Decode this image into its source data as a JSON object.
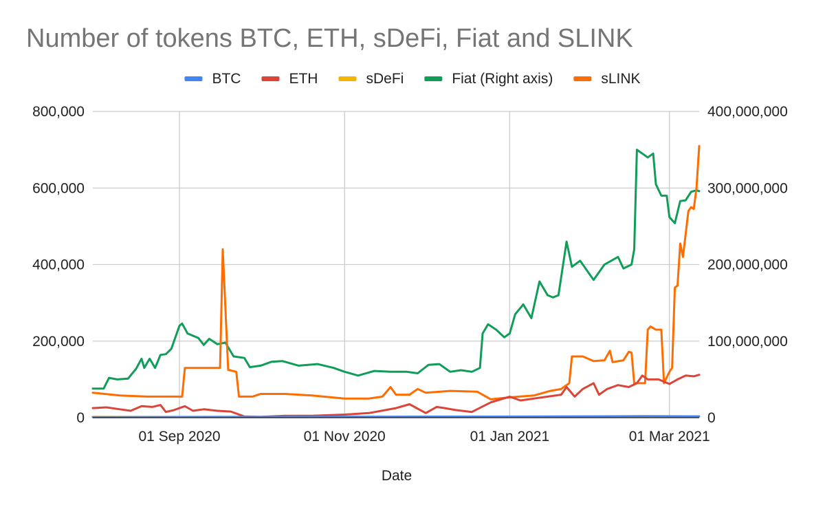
{
  "chart_data": {
    "type": "line",
    "title": "Number of tokens BTC, ETH, sDeFi, Fiat and SLINK",
    "xlabel": "Date",
    "ylabel": "",
    "ylabel_right": "",
    "x_range": [
      "2020-07-31",
      "2021-03-12"
    ],
    "ylim": [
      0,
      800000
    ],
    "ylim_right": [
      0,
      400000000
    ],
    "grid": true,
    "legend_position": "top",
    "x_ticks": [
      {
        "date": "2020-09-01",
        "label": "01 Sep 2020"
      },
      {
        "date": "2020-11-01",
        "label": "01 Nov 2020"
      },
      {
        "date": "2021-01-01",
        "label": "01 Jan 2021"
      },
      {
        "date": "2021-03-01",
        "label": "01 Mar 2021"
      }
    ],
    "y_ticks_left": [
      {
        "value": 0,
        "label": "0"
      },
      {
        "value": 200000,
        "label": "200,000"
      },
      {
        "value": 400000,
        "label": "400,000"
      },
      {
        "value": 600000,
        "label": "600,000"
      },
      {
        "value": 800000,
        "label": "800,000"
      }
    ],
    "y_ticks_right": [
      {
        "value": 0,
        "label": "0"
      },
      {
        "value": 100000000,
        "label": "100,000,000"
      },
      {
        "value": 200000000,
        "label": "200,000,000"
      },
      {
        "value": 300000000,
        "label": "300,000,000"
      },
      {
        "value": 400000000,
        "label": "400,000,000"
      }
    ],
    "series": [
      {
        "name": "BTC",
        "axis": "left",
        "color": "#4285f4",
        "points": [
          [
            "2020-07-31",
            1500
          ],
          [
            "2020-09-15",
            2000
          ],
          [
            "2020-11-15",
            2500
          ],
          [
            "2021-01-15",
            3000
          ],
          [
            "2021-02-20",
            4000
          ],
          [
            "2021-03-12",
            3500
          ]
        ]
      },
      {
        "name": "ETH",
        "axis": "left",
        "color": "#db4437",
        "points": [
          [
            "2020-07-31",
            25000
          ],
          [
            "2020-08-05",
            27000
          ],
          [
            "2020-08-10",
            22000
          ],
          [
            "2020-08-14",
            18000
          ],
          [
            "2020-08-18",
            30000
          ],
          [
            "2020-08-22",
            28000
          ],
          [
            "2020-08-25",
            33000
          ],
          [
            "2020-08-27",
            15000
          ],
          [
            "2020-08-30",
            20000
          ],
          [
            "2020-09-03",
            30000
          ],
          [
            "2020-09-06",
            18000
          ],
          [
            "2020-09-10",
            22000
          ],
          [
            "2020-09-15",
            18000
          ],
          [
            "2020-09-20",
            16000
          ],
          [
            "2020-09-25",
            3000
          ],
          [
            "2020-10-01",
            2000
          ],
          [
            "2020-10-10",
            5000
          ],
          [
            "2020-10-20",
            5000
          ],
          [
            "2020-11-01",
            8000
          ],
          [
            "2020-11-10",
            12000
          ],
          [
            "2020-11-20",
            25000
          ],
          [
            "2020-11-25",
            35000
          ],
          [
            "2020-12-01",
            12000
          ],
          [
            "2020-12-05",
            28000
          ],
          [
            "2020-12-08",
            25000
          ],
          [
            "2020-12-12",
            20000
          ],
          [
            "2020-12-18",
            15000
          ],
          [
            "2020-12-25",
            40000
          ],
          [
            "2021-01-01",
            55000
          ],
          [
            "2021-01-05",
            45000
          ],
          [
            "2021-01-10",
            50000
          ],
          [
            "2021-01-15",
            55000
          ],
          [
            "2021-01-20",
            60000
          ],
          [
            "2021-01-22",
            80000
          ],
          [
            "2021-01-25",
            55000
          ],
          [
            "2021-01-28",
            75000
          ],
          [
            "2021-02-01",
            90000
          ],
          [
            "2021-02-03",
            60000
          ],
          [
            "2021-02-06",
            75000
          ],
          [
            "2021-02-10",
            85000
          ],
          [
            "2021-02-14",
            80000
          ],
          [
            "2021-02-17",
            90000
          ],
          [
            "2021-02-19",
            110000
          ],
          [
            "2021-02-21",
            100000
          ],
          [
            "2021-02-25",
            100000
          ],
          [
            "2021-03-01",
            88000
          ],
          [
            "2021-03-04",
            100000
          ],
          [
            "2021-03-07",
            110000
          ],
          [
            "2021-03-10",
            108000
          ],
          [
            "2021-03-12",
            112000
          ]
        ]
      },
      {
        "name": "sDeFi",
        "axis": "left",
        "color": "#f4b400",
        "points": [
          [
            "2020-07-31",
            2000
          ],
          [
            "2020-10-01",
            1500
          ],
          [
            "2021-01-01",
            2500
          ],
          [
            "2021-03-12",
            3000
          ]
        ]
      },
      {
        "name": "Fiat (Right axis)",
        "axis": "right",
        "color": "#0f9d58",
        "points": [
          [
            "2020-07-31",
            38000000
          ],
          [
            "2020-08-04",
            38000000
          ],
          [
            "2020-08-06",
            52000000
          ],
          [
            "2020-08-09",
            50000000
          ],
          [
            "2020-08-13",
            51000000
          ],
          [
            "2020-08-16",
            64000000
          ],
          [
            "2020-08-18",
            77000000
          ],
          [
            "2020-08-19",
            65000000
          ],
          [
            "2020-08-21",
            77000000
          ],
          [
            "2020-08-23",
            65000000
          ],
          [
            "2020-08-25",
            82000000
          ],
          [
            "2020-08-27",
            83000000
          ],
          [
            "2020-08-29",
            90000000
          ],
          [
            "2020-09-01",
            120000000
          ],
          [
            "2020-09-02",
            123000000
          ],
          [
            "2020-09-04",
            110000000
          ],
          [
            "2020-09-08",
            104000000
          ],
          [
            "2020-09-10",
            95000000
          ],
          [
            "2020-09-12",
            103000000
          ],
          [
            "2020-09-15",
            96000000
          ],
          [
            "2020-09-18",
            98000000
          ],
          [
            "2020-09-21",
            80000000
          ],
          [
            "2020-09-25",
            78000000
          ],
          [
            "2020-09-27",
            66000000
          ],
          [
            "2020-10-01",
            68000000
          ],
          [
            "2020-10-05",
            73000000
          ],
          [
            "2020-10-09",
            74000000
          ],
          [
            "2020-10-15",
            68000000
          ],
          [
            "2020-10-22",
            70000000
          ],
          [
            "2020-10-28",
            65000000
          ],
          [
            "2020-11-01",
            60000000
          ],
          [
            "2020-11-06",
            55000000
          ],
          [
            "2020-11-12",
            61000000
          ],
          [
            "2020-11-18",
            60000000
          ],
          [
            "2020-11-24",
            60000000
          ],
          [
            "2020-11-28",
            58000000
          ],
          [
            "2020-12-02",
            69000000
          ],
          [
            "2020-12-06",
            70000000
          ],
          [
            "2020-12-10",
            60000000
          ],
          [
            "2020-12-14",
            62000000
          ],
          [
            "2020-12-18",
            60000000
          ],
          [
            "2020-12-21",
            65000000
          ],
          [
            "2020-12-22",
            110000000
          ],
          [
            "2020-12-24",
            122000000
          ],
          [
            "2020-12-27",
            115000000
          ],
          [
            "2020-12-30",
            105000000
          ],
          [
            "2021-01-01",
            110000000
          ],
          [
            "2021-01-03",
            135000000
          ],
          [
            "2021-01-06",
            148000000
          ],
          [
            "2021-01-09",
            130000000
          ],
          [
            "2021-01-12",
            178000000
          ],
          [
            "2021-01-15",
            160000000
          ],
          [
            "2021-01-17",
            157000000
          ],
          [
            "2021-01-19",
            160000000
          ],
          [
            "2021-01-22",
            230000000
          ],
          [
            "2021-01-24",
            197000000
          ],
          [
            "2021-01-27",
            205000000
          ],
          [
            "2021-02-01",
            180000000
          ],
          [
            "2021-02-05",
            200000000
          ],
          [
            "2021-02-10",
            210000000
          ],
          [
            "2021-02-12",
            195000000
          ],
          [
            "2021-02-15",
            200000000
          ],
          [
            "2021-02-16",
            220000000
          ],
          [
            "2021-02-17",
            350000000
          ],
          [
            "2021-02-19",
            345000000
          ],
          [
            "2021-02-21",
            340000000
          ],
          [
            "2021-02-23",
            345000000
          ],
          [
            "2021-02-24",
            305000000
          ],
          [
            "2021-02-26",
            290000000
          ],
          [
            "2021-02-28",
            290000000
          ],
          [
            "2021-03-01",
            262000000
          ],
          [
            "2021-03-03",
            254000000
          ],
          [
            "2021-03-05",
            283000000
          ],
          [
            "2021-03-07",
            284000000
          ],
          [
            "2021-03-09",
            295000000
          ],
          [
            "2021-03-11",
            297000000
          ],
          [
            "2021-03-12",
            296000000
          ]
        ]
      },
      {
        "name": "sLINK",
        "axis": "left",
        "color": "#ff6d01",
        "points": [
          [
            "2020-07-31",
            65000
          ],
          [
            "2020-08-10",
            58000
          ],
          [
            "2020-08-20",
            55000
          ],
          [
            "2020-08-30",
            55000
          ],
          [
            "2020-09-02",
            55000
          ],
          [
            "2020-09-03",
            130000
          ],
          [
            "2020-09-10",
            130000
          ],
          [
            "2020-09-16",
            130000
          ],
          [
            "2020-09-17",
            440000
          ],
          [
            "2020-09-19",
            125000
          ],
          [
            "2020-09-22",
            120000
          ],
          [
            "2020-09-23",
            55000
          ],
          [
            "2020-09-28",
            55000
          ],
          [
            "2020-10-01",
            62000
          ],
          [
            "2020-10-10",
            62000
          ],
          [
            "2020-10-20",
            58000
          ],
          [
            "2020-11-01",
            50000
          ],
          [
            "2020-11-10",
            50000
          ],
          [
            "2020-11-15",
            55000
          ],
          [
            "2020-11-18",
            80000
          ],
          [
            "2020-11-20",
            60000
          ],
          [
            "2020-11-25",
            60000
          ],
          [
            "2020-11-28",
            75000
          ],
          [
            "2020-12-01",
            65000
          ],
          [
            "2020-12-10",
            70000
          ],
          [
            "2020-12-20",
            68000
          ],
          [
            "2020-12-25",
            48000
          ],
          [
            "2021-01-01",
            53000
          ],
          [
            "2021-01-10",
            58000
          ],
          [
            "2021-01-16",
            70000
          ],
          [
            "2021-01-20",
            75000
          ],
          [
            "2021-01-23",
            90000
          ],
          [
            "2021-01-24",
            160000
          ],
          [
            "2021-01-28",
            160000
          ],
          [
            "2021-02-01",
            148000
          ],
          [
            "2021-02-05",
            150000
          ],
          [
            "2021-02-07",
            175000
          ],
          [
            "2021-02-08",
            145000
          ],
          [
            "2021-02-12",
            150000
          ],
          [
            "2021-02-14",
            172000
          ],
          [
            "2021-02-15",
            170000
          ],
          [
            "2021-02-16",
            90000
          ],
          [
            "2021-02-20",
            90000
          ],
          [
            "2021-02-21",
            230000
          ],
          [
            "2021-02-22",
            238000
          ],
          [
            "2021-02-24",
            230000
          ],
          [
            "2021-02-26",
            230000
          ],
          [
            "2021-02-27",
            90000
          ],
          [
            "2021-03-01",
            120000
          ],
          [
            "2021-03-02",
            130000
          ],
          [
            "2021-03-03",
            340000
          ],
          [
            "2021-03-04",
            345000
          ],
          [
            "2021-03-05",
            455000
          ],
          [
            "2021-03-06",
            420000
          ],
          [
            "2021-03-08",
            540000
          ],
          [
            "2021-03-09",
            550000
          ],
          [
            "2021-03-10",
            545000
          ],
          [
            "2021-03-11",
            600000
          ],
          [
            "2021-03-12",
            710000
          ]
        ]
      }
    ]
  }
}
